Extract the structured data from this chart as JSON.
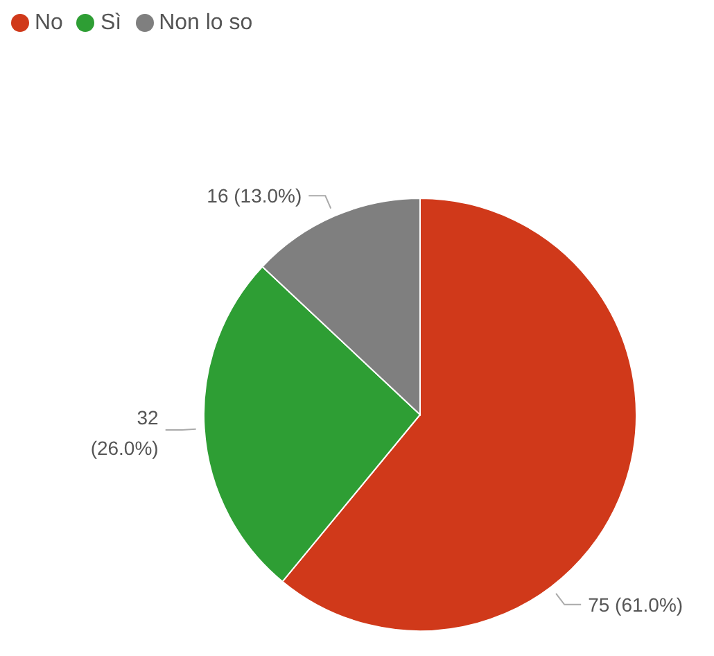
{
  "chart_data": {
    "type": "pie",
    "categories": [
      "No",
      "Sì",
      "Non lo so"
    ],
    "values": [
      75,
      32,
      16
    ],
    "colors": [
      "#d0391a",
      "#2e9e34",
      "#7f7f7f"
    ],
    "value_labels": [
      "75 (61.0%)",
      "32\n(26.0%)",
      "16 (13.0%)"
    ],
    "legend": "top left"
  }
}
